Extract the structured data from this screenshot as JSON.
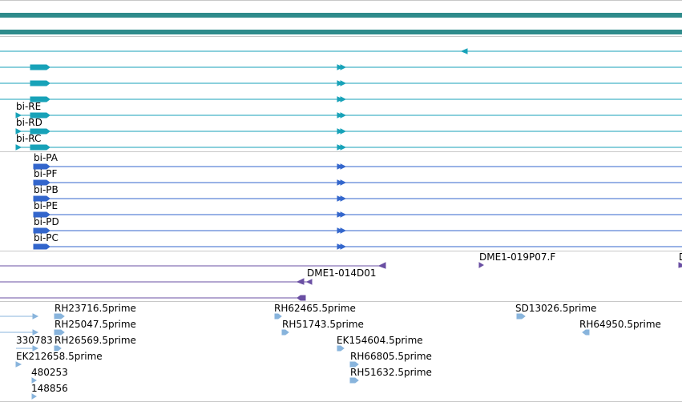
{
  "colors": {
    "separator": "#c8c8c8",
    "scaffold": "#2e8b8b",
    "teal_transcript": "#17a2b8",
    "blue_transcript": "#3366cc",
    "purple_feature": "#6a4fa3",
    "est_feature": "#88b4dc"
  },
  "teal_labels": [
    "bi-RE",
    "bi-RD",
    "bi-RC"
  ],
  "blue_labels": [
    "bi-PA",
    "bi-PF",
    "bi-PB",
    "bi-PE",
    "bi-PD",
    "bi-PC"
  ],
  "purple_labels": [
    "DME1-019P07.F",
    "DME1-014D01"
  ],
  "est_labels": [
    "RH23716.5prime",
    "RH62465.5prime",
    "SD13026.5prime",
    "RH25047.5prime",
    "RH51743.5prime",
    "RH64950.5prime",
    "330783",
    "RH26569.5prime",
    "EK154604.5prime",
    "EK212658.5prime",
    "RH66805.5prime",
    "480253",
    "RH51632.5prime",
    "148856"
  ]
}
